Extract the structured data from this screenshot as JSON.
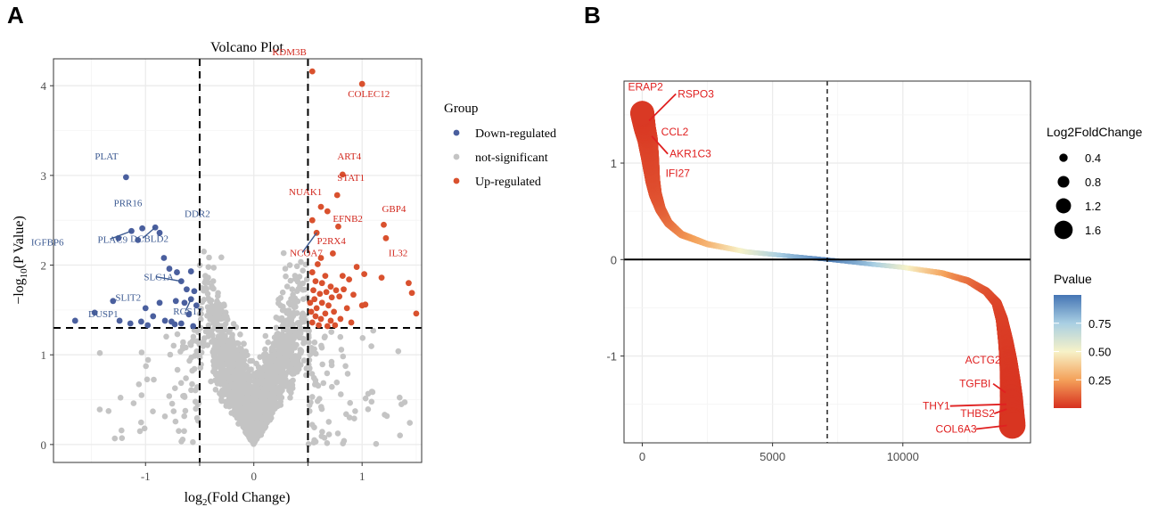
{
  "panels": {
    "a": "A",
    "b": "B"
  },
  "colors": {
    "down": "#4a5f9e",
    "ns": "#c4c4c4",
    "up": "#d9512e",
    "label_down": "#3c5a92",
    "label_up": "#d2281e",
    "label_b": "#e02020",
    "grid": "#ebebeb"
  },
  "chart_data": [
    {
      "type": "scatter",
      "title": "Volcano Plot",
      "xlabel_prefix": "log",
      "xlabel_sub": "2",
      "xlabel_suffix": "(Fold Change)",
      "ylabel_prefix": "−log",
      "ylabel_sub": "10",
      "ylabel_suffix": "(P Value)",
      "xlim": [
        -1.85,
        1.55
      ],
      "ylim": [
        -0.2,
        4.3
      ],
      "x_ticks": [
        -1,
        -0.5,
        0,
        0.5,
        1
      ],
      "x_tick_labels": [
        "-1",
        "",
        "0",
        "",
        "1"
      ],
      "y_ticks": [
        0,
        1,
        2,
        3,
        4
      ],
      "y_tick_labels": [
        "0",
        "1",
        "2",
        "3",
        "4"
      ],
      "thresholds": {
        "x": [
          -0.5,
          0.5
        ],
        "y": 1.3
      },
      "legend": {
        "title": "Group",
        "position": "right",
        "entries": [
          {
            "label": "Down-regulated",
            "group": "down"
          },
          {
            "label": "not-significant",
            "group": "ns"
          },
          {
            "label": "Up-regulated",
            "group": "up"
          }
        ]
      },
      "series": [
        {
          "name": "Down-regulated",
          "group": "down",
          "points": [
            [
              -1.18,
              2.98
            ],
            [
              -1.25,
              2.3
            ],
            [
              -1.07,
              2.28
            ],
            [
              -1.13,
              2.38
            ],
            [
              -1.03,
              2.41
            ],
            [
              -0.91,
              2.42
            ],
            [
              -0.87,
              2.36
            ],
            [
              -0.83,
              2.08
            ],
            [
              -0.78,
              1.96
            ],
            [
              -0.71,
              1.92
            ],
            [
              -0.67,
              1.82
            ],
            [
              -0.62,
              1.73
            ],
            [
              -0.58,
              1.93
            ],
            [
              -0.55,
              1.71
            ],
            [
              -0.87,
              1.58
            ],
            [
              -0.72,
              1.6
            ],
            [
              -0.64,
              1.58
            ],
            [
              -0.58,
              1.62
            ],
            [
              -0.53,
              1.55
            ],
            [
              -0.6,
              1.45
            ],
            [
              -0.93,
              1.43
            ],
            [
              -0.82,
              1.38
            ],
            [
              -0.76,
              1.37
            ],
            [
              -0.67,
              1.35
            ],
            [
              -0.56,
              1.32
            ],
            [
              -1.0,
              1.52
            ],
            [
              -1.04,
              1.37
            ],
            [
              -1.24,
              1.38
            ],
            [
              -1.3,
              1.6
            ],
            [
              -1.47,
              1.47
            ],
            [
              -1.65,
              1.38
            ],
            [
              -1.14,
              1.35
            ],
            [
              -0.98,
              1.33
            ],
            [
              -0.73,
              1.34
            ]
          ]
        },
        {
          "name": "Up-regulated",
          "group": "up",
          "points": [
            [
              0.54,
              4.16
            ],
            [
              1.0,
              4.02
            ],
            [
              0.82,
              3.01
            ],
            [
              0.77,
              2.78
            ],
            [
              0.62,
              2.65
            ],
            [
              0.68,
              2.6
            ],
            [
              1.2,
              2.45
            ],
            [
              1.22,
              2.3
            ],
            [
              0.78,
              2.43
            ],
            [
              0.58,
              2.36
            ],
            [
              0.54,
              2.5
            ],
            [
              0.73,
              2.13
            ],
            [
              0.62,
              2.08
            ],
            [
              0.95,
              1.98
            ],
            [
              1.02,
              1.9
            ],
            [
              0.59,
              2.01
            ],
            [
              0.54,
              1.92
            ],
            [
              0.66,
              1.88
            ],
            [
              0.82,
              1.88
            ],
            [
              0.88,
              1.84
            ],
            [
              0.57,
              1.82
            ],
            [
              0.63,
              1.8
            ],
            [
              0.71,
              1.76
            ],
            [
              0.76,
              1.72
            ],
            [
              0.83,
              1.73
            ],
            [
              0.55,
              1.72
            ],
            [
              0.61,
              1.68
            ],
            [
              0.67,
              1.7
            ],
            [
              0.72,
              1.64
            ],
            [
              0.79,
              1.65
            ],
            [
              0.92,
              1.67
            ],
            [
              0.56,
              1.62
            ],
            [
              0.63,
              1.58
            ],
            [
              0.69,
              1.55
            ],
            [
              0.58,
              1.52
            ],
            [
              0.66,
              1.46
            ],
            [
              0.74,
              1.48
            ],
            [
              0.86,
              1.52
            ],
            [
              0.52,
              1.58
            ],
            [
              0.57,
              1.43
            ],
            [
              0.62,
              1.4
            ],
            [
              0.71,
              1.38
            ],
            [
              0.8,
              1.4
            ],
            [
              0.54,
              1.36
            ],
            [
              0.6,
              1.33
            ],
            [
              0.68,
              1.32
            ],
            [
              0.9,
              1.36
            ],
            [
              1.0,
              1.55
            ],
            [
              1.03,
              1.56
            ],
            [
              1.43,
              1.8
            ],
            [
              1.46,
              1.69
            ],
            [
              1.5,
              1.46
            ],
            [
              1.18,
              1.86
            ],
            [
              0.53,
              1.48
            ],
            [
              0.75,
              1.33
            ]
          ]
        }
      ],
      "annotations": [
        {
          "label": "PLAT",
          "group": "down",
          "x": -1.18,
          "y": 2.98
        },
        {
          "label": "PRR16",
          "group": "down",
          "x": -1.03,
          "y": 2.41
        },
        {
          "label": "DDR2",
          "group": "down",
          "x": -0.87,
          "y": 2.36
        },
        {
          "label": "IGFBP6",
          "group": "down",
          "x": -1.25,
          "y": 2.3
        },
        {
          "label": "PLAC9",
          "group": "down",
          "x": -1.13,
          "y": 2.38
        },
        {
          "label": "DCBLD2",
          "group": "down",
          "x": -0.91,
          "y": 2.42
        },
        {
          "label": "SLC1A",
          "group": "down",
          "x": -0.67,
          "y": 1.82
        },
        {
          "label": "SLIT2",
          "group": "down",
          "x": -0.62,
          "y": 1.73
        },
        {
          "label": "DUSP1",
          "group": "down",
          "x": -0.87,
          "y": 1.58
        },
        {
          "label": "RGS17",
          "group": "down",
          "x": -0.58,
          "y": 1.62
        },
        {
          "label": "KDM3B",
          "group": "up",
          "x": 0.54,
          "y": 4.16
        },
        {
          "label": "COLEC12",
          "group": "up",
          "x": 1.0,
          "y": 4.02
        },
        {
          "label": "ART4",
          "group": "up",
          "x": 0.82,
          "y": 3.01
        },
        {
          "label": "STAT1",
          "group": "up",
          "x": 0.77,
          "y": 2.78
        },
        {
          "label": "NUAK1",
          "group": "up",
          "x": 0.62,
          "y": 2.65
        },
        {
          "label": "EFNB2",
          "group": "up",
          "x": 0.68,
          "y": 2.6
        },
        {
          "label": "GBP4",
          "group": "up",
          "x": 1.2,
          "y": 2.45
        },
        {
          "label": "P2RX4",
          "group": "up",
          "x": 0.78,
          "y": 2.43
        },
        {
          "label": "NCOA7",
          "group": "up",
          "x": 0.58,
          "y": 2.36
        },
        {
          "label": "IL32",
          "group": "up",
          "x": 1.22,
          "y": 2.3
        }
      ]
    },
    {
      "type": "scatter",
      "subtype": "ranked-log2FC",
      "title": "",
      "xlabel": "",
      "ylabel": "",
      "n_genes": 14200,
      "xlim": [
        -700,
        14900
      ],
      "ylim": [
        -1.9,
        1.85
      ],
      "x_ticks": [
        0,
        5000,
        10000
      ],
      "x_tick_labels": [
        "0",
        "5000",
        "10000"
      ],
      "y_ticks": [
        -1,
        0,
        1
      ],
      "y_tick_labels": [
        "-1",
        "0",
        "1"
      ],
      "hline": 0,
      "vline": 7100,
      "curve_knots": [
        [
          0,
          1.52
        ],
        [
          40,
          1.45
        ],
        [
          100,
          1.36
        ],
        [
          200,
          1.25
        ],
        [
          300,
          1.05
        ],
        [
          400,
          0.82
        ],
        [
          500,
          0.68
        ],
        [
          700,
          0.52
        ],
        [
          1000,
          0.38
        ],
        [
          1500,
          0.26
        ],
        [
          2500,
          0.16
        ],
        [
          4000,
          0.08
        ],
        [
          5500,
          0.04
        ],
        [
          7100,
          0.0
        ],
        [
          8500,
          -0.04
        ],
        [
          10000,
          -0.08
        ],
        [
          11500,
          -0.14
        ],
        [
          12500,
          -0.22
        ],
        [
          13200,
          -0.33
        ],
        [
          13600,
          -0.45
        ],
        [
          13800,
          -0.62
        ],
        [
          13950,
          -0.85
        ],
        [
          14050,
          -1.05
        ],
        [
          14120,
          -1.25
        ],
        [
          14170,
          -1.45
        ],
        [
          14200,
          -1.72
        ]
      ],
      "pvalue_knots": [
        [
          0,
          0.02
        ],
        [
          300,
          0.05
        ],
        [
          1200,
          0.18
        ],
        [
          2500,
          0.32
        ],
        [
          4000,
          0.55
        ],
        [
          5500,
          0.8
        ],
        [
          7100,
          0.98
        ],
        [
          8700,
          0.8
        ],
        [
          10500,
          0.45
        ],
        [
          12000,
          0.2
        ],
        [
          13200,
          0.08
        ],
        [
          14200,
          0.01
        ]
      ],
      "labels": [
        {
          "label": "ERAP2",
          "rank": 0,
          "value": 1.52
        },
        {
          "label": "RSPO3",
          "rank": 60,
          "value": 1.44
        },
        {
          "label": "CCL2",
          "rank": 110,
          "value": 1.36
        },
        {
          "label": "AKR1C3",
          "rank": 160,
          "value": 1.28
        },
        {
          "label": "IFI27",
          "rank": 210,
          "value": 1.18
        },
        {
          "label": "ACTG2",
          "rank": 14100,
          "value": -1.2
        },
        {
          "label": "TGFBI",
          "rank": 14150,
          "value": -1.38
        },
        {
          "label": "THY1",
          "rank": 14180,
          "value": -1.5
        },
        {
          "label": "THBS2",
          "rank": 14190,
          "value": -1.55
        },
        {
          "label": "COL6A3",
          "rank": 14200,
          "value": -1.72
        }
      ],
      "legend_size": {
        "title": "Log2FoldChange",
        "entries": [
          0.4,
          0.8,
          1.2,
          1.6
        ],
        "entry_labels": [
          "0.4",
          "0.8",
          "1.2",
          "1.6"
        ]
      },
      "legend_color": {
        "title": "Pvalue",
        "range": [
          0,
          1
        ],
        "ticks": [
          0.25,
          0.5,
          0.75
        ],
        "tick_labels": [
          "0.25",
          "0.50",
          "0.75"
        ]
      }
    }
  ]
}
